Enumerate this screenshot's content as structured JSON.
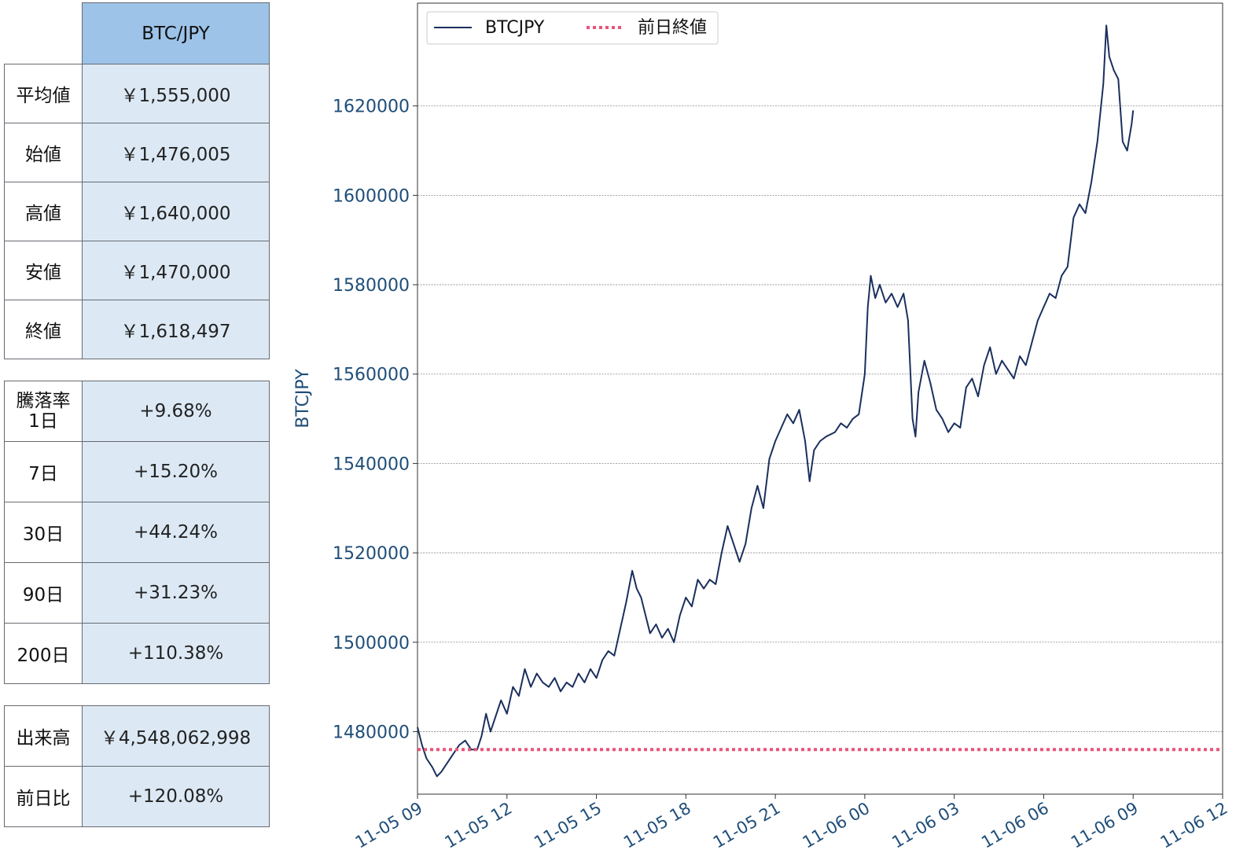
{
  "stats_table": {
    "header": "BTC/JPY",
    "rows": [
      {
        "label": "平均値",
        "value": "￥1,555,000"
      },
      {
        "label": "始値",
        "value": "￥1,476,005"
      },
      {
        "label": "高値",
        "value": "￥1,640,000"
      },
      {
        "label": "安値",
        "value": "￥1,470,000"
      },
      {
        "label": "終値",
        "value": "￥1,618,497"
      }
    ]
  },
  "change_table": {
    "title_line1": "騰落率",
    "rows": [
      {
        "label": "1日",
        "value": "+9.68%"
      },
      {
        "label": "7日",
        "value": "+15.20%"
      },
      {
        "label": "30日",
        "value": "+44.24%"
      },
      {
        "label": "90日",
        "value": "+31.23%"
      },
      {
        "label": "200日",
        "value": "+110.38%"
      }
    ]
  },
  "volume_table": {
    "rows": [
      {
        "label": "出来高",
        "value": "￥4,548,062,998"
      },
      {
        "label": "前日比",
        "value": "+120.08%"
      }
    ]
  },
  "chart_data": {
    "type": "line",
    "ylabel": "BTCJPY",
    "xlabel": "",
    "xlim": [
      0,
      27
    ],
    "ylim": [
      1466000,
      1643000
    ],
    "x_tick_values": [
      0,
      3,
      6,
      9,
      12,
      15,
      18,
      21,
      24,
      27
    ],
    "x_tick_labels": [
      "11-05 09",
      "11-05 12",
      "11-05 15",
      "11-05 18",
      "11-05 21",
      "11-06 00",
      "11-06 03",
      "11-06 06",
      "11-06 09",
      "11-06 12"
    ],
    "y_ticks": [
      1480000,
      1500000,
      1520000,
      1540000,
      1560000,
      1580000,
      1600000,
      1620000
    ],
    "y_tick_labels": [
      "1480000",
      "1500000",
      "1520000",
      "1540000",
      "1560000",
      "1580000",
      "1600000",
      "1620000"
    ],
    "grid": "horizontal",
    "legend_position": "top-left",
    "series": [
      {
        "name": "BTCJPY",
        "color": "#1b2f5e",
        "style": "solid",
        "points": [
          [
            0.0,
            1481000
          ],
          [
            0.15,
            1477000
          ],
          [
            0.3,
            1474000
          ],
          [
            0.5,
            1472000
          ],
          [
            0.65,
            1470000
          ],
          [
            0.8,
            1471000
          ],
          [
            1.0,
            1473000
          ],
          [
            1.2,
            1475000
          ],
          [
            1.4,
            1477000
          ],
          [
            1.6,
            1478000
          ],
          [
            1.8,
            1476000
          ],
          [
            2.0,
            1476000
          ],
          [
            2.15,
            1479000
          ],
          [
            2.3,
            1484000
          ],
          [
            2.45,
            1480000
          ],
          [
            2.6,
            1483000
          ],
          [
            2.8,
            1487000
          ],
          [
            3.0,
            1484000
          ],
          [
            3.2,
            1490000
          ],
          [
            3.4,
            1488000
          ],
          [
            3.6,
            1494000
          ],
          [
            3.8,
            1490000
          ],
          [
            4.0,
            1493000
          ],
          [
            4.2,
            1491000
          ],
          [
            4.4,
            1490000
          ],
          [
            4.6,
            1492000
          ],
          [
            4.8,
            1489000
          ],
          [
            5.0,
            1491000
          ],
          [
            5.2,
            1490000
          ],
          [
            5.4,
            1493000
          ],
          [
            5.6,
            1491000
          ],
          [
            5.8,
            1494000
          ],
          [
            6.0,
            1492000
          ],
          [
            6.2,
            1496000
          ],
          [
            6.4,
            1498000
          ],
          [
            6.6,
            1497000
          ],
          [
            6.8,
            1503000
          ],
          [
            7.0,
            1509000
          ],
          [
            7.2,
            1516000
          ],
          [
            7.35,
            1512000
          ],
          [
            7.5,
            1510000
          ],
          [
            7.65,
            1506000
          ],
          [
            7.8,
            1502000
          ],
          [
            8.0,
            1504000
          ],
          [
            8.2,
            1501000
          ],
          [
            8.4,
            1503000
          ],
          [
            8.6,
            1500000
          ],
          [
            8.8,
            1506000
          ],
          [
            9.0,
            1510000
          ],
          [
            9.2,
            1508000
          ],
          [
            9.4,
            1514000
          ],
          [
            9.6,
            1512000
          ],
          [
            9.8,
            1514000
          ],
          [
            10.0,
            1513000
          ],
          [
            10.2,
            1520000
          ],
          [
            10.4,
            1526000
          ],
          [
            10.6,
            1522000
          ],
          [
            10.8,
            1518000
          ],
          [
            11.0,
            1522000
          ],
          [
            11.2,
            1530000
          ],
          [
            11.4,
            1535000
          ],
          [
            11.6,
            1530000
          ],
          [
            11.8,
            1541000
          ],
          [
            12.0,
            1545000
          ],
          [
            12.2,
            1548000
          ],
          [
            12.4,
            1551000
          ],
          [
            12.6,
            1549000
          ],
          [
            12.8,
            1552000
          ],
          [
            13.0,
            1545000
          ],
          [
            13.15,
            1536000
          ],
          [
            13.3,
            1543000
          ],
          [
            13.5,
            1545000
          ],
          [
            13.7,
            1546000
          ],
          [
            14.0,
            1547000
          ],
          [
            14.2,
            1549000
          ],
          [
            14.4,
            1548000
          ],
          [
            14.6,
            1550000
          ],
          [
            14.8,
            1551000
          ],
          [
            15.0,
            1560000
          ],
          [
            15.1,
            1575000
          ],
          [
            15.2,
            1582000
          ],
          [
            15.35,
            1577000
          ],
          [
            15.5,
            1580000
          ],
          [
            15.7,
            1576000
          ],
          [
            15.9,
            1578000
          ],
          [
            16.1,
            1575000
          ],
          [
            16.3,
            1578000
          ],
          [
            16.45,
            1572000
          ],
          [
            16.6,
            1550000
          ],
          [
            16.7,
            1546000
          ],
          [
            16.8,
            1556000
          ],
          [
            17.0,
            1563000
          ],
          [
            17.2,
            1558000
          ],
          [
            17.4,
            1552000
          ],
          [
            17.6,
            1550000
          ],
          [
            17.8,
            1547000
          ],
          [
            18.0,
            1549000
          ],
          [
            18.2,
            1548000
          ],
          [
            18.4,
            1557000
          ],
          [
            18.6,
            1559000
          ],
          [
            18.8,
            1555000
          ],
          [
            19.0,
            1562000
          ],
          [
            19.2,
            1566000
          ],
          [
            19.4,
            1560000
          ],
          [
            19.6,
            1563000
          ],
          [
            19.8,
            1561000
          ],
          [
            20.0,
            1559000
          ],
          [
            20.2,
            1564000
          ],
          [
            20.4,
            1562000
          ],
          [
            20.6,
            1567000
          ],
          [
            20.8,
            1572000
          ],
          [
            21.0,
            1575000
          ],
          [
            21.2,
            1578000
          ],
          [
            21.4,
            1577000
          ],
          [
            21.6,
            1582000
          ],
          [
            21.8,
            1584000
          ],
          [
            22.0,
            1595000
          ],
          [
            22.2,
            1598000
          ],
          [
            22.4,
            1596000
          ],
          [
            22.6,
            1603000
          ],
          [
            22.8,
            1612000
          ],
          [
            23.0,
            1625000
          ],
          [
            23.1,
            1638000
          ],
          [
            23.2,
            1631000
          ],
          [
            23.35,
            1628000
          ],
          [
            23.5,
            1626000
          ],
          [
            23.65,
            1612000
          ],
          [
            23.8,
            1610000
          ],
          [
            23.95,
            1616000
          ],
          [
            24.0,
            1619000
          ]
        ]
      },
      {
        "name": "前日終値",
        "color": "#e8547a",
        "style": "dotted",
        "points": [
          [
            0,
            1476000
          ],
          [
            27,
            1476000
          ]
        ]
      }
    ]
  }
}
